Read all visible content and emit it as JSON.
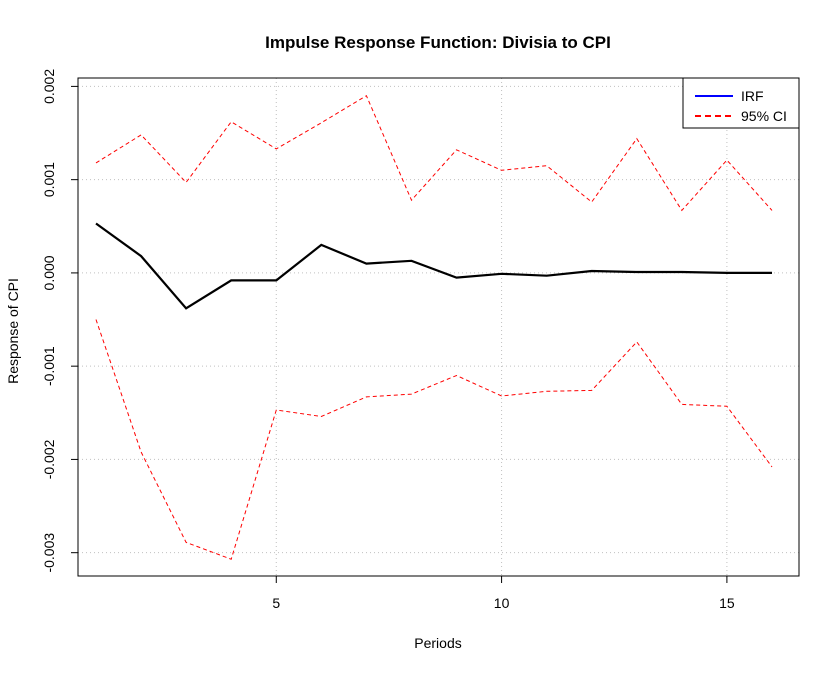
{
  "chart_data": {
    "type": "line",
    "title": "Impulse Response Function: Divisia to CPI",
    "xlabel": "Periods",
    "ylabel": "Response of CPI",
    "x": [
      1,
      2,
      3,
      4,
      5,
      6,
      7,
      8,
      9,
      10,
      11,
      12,
      13,
      14,
      15,
      16
    ],
    "xlim": [
      0.6,
      16.6
    ],
    "ylim": [
      -0.00325,
      0.00209
    ],
    "x_ticks": [
      5,
      10,
      15
    ],
    "x_tick_labels": [
      "5",
      "10",
      "15"
    ],
    "y_ticks": [
      -0.003,
      -0.002,
      -0.001,
      0.0,
      0.001,
      0.002
    ],
    "y_tick_labels": [
      "-0.003",
      "-0.002",
      "-0.001",
      "0.000",
      "0.001",
      "0.002"
    ],
    "grid": true,
    "legend_position": "top-right",
    "series": [
      {
        "name": "IRF",
        "color": "#000000",
        "legend_color": "#0000ff",
        "style": "solid",
        "values": [
          0.00053,
          0.00018,
          -0.00038,
          -8e-05,
          -8e-05,
          0.0003,
          0.0001,
          0.00013,
          -5e-05,
          -1e-05,
          -3e-05,
          2e-05,
          1e-05,
          1e-05,
          0.0,
          0.0
        ]
      },
      {
        "name": "95% CI",
        "color": "#ff0000",
        "style": "dashed",
        "values": [
          0.00118,
          0.00148,
          0.00097,
          0.00162,
          0.00133,
          0.00161,
          0.0019,
          0.00078,
          0.00132,
          0.0011,
          0.00115,
          0.00076,
          0.00144,
          0.00067,
          0.00121,
          0.00067
        ]
      },
      {
        "name": "",
        "color": "#ff0000",
        "style": "dashed",
        "values": [
          -0.0005,
          -0.00192,
          -0.00289,
          -0.00307,
          -0.00147,
          -0.00154,
          -0.00133,
          -0.0013,
          -0.0011,
          -0.00132,
          -0.00127,
          -0.00126,
          -0.00074,
          -0.00141,
          -0.00143,
          -0.00208
        ]
      }
    ]
  }
}
